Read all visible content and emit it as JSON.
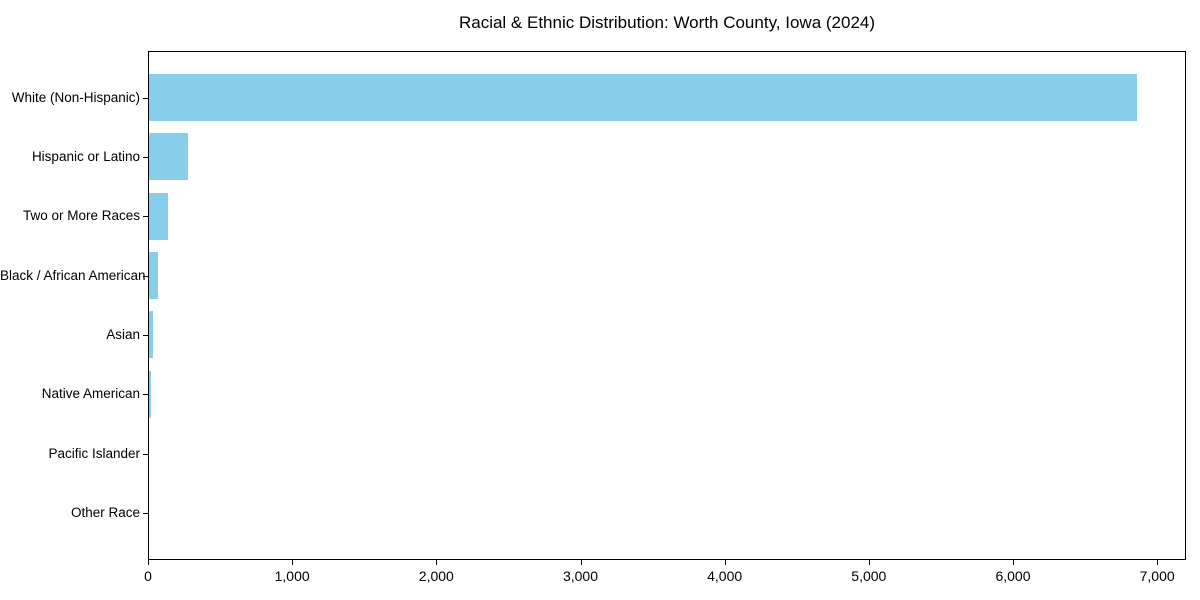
{
  "chart": {
    "background": "#ffffff",
    "bar_color": "#87ceeb",
    "axis_color": "#000000",
    "text_color": "#000000"
  },
  "chart_data": {
    "type": "bar",
    "orientation": "horizontal",
    "title": "Racial & Ethnic Distribution: Worth County, Iowa (2024)",
    "xlabel": "",
    "ylabel": "",
    "categories": [
      "White (Non-Hispanic)",
      "Hispanic or Latino",
      "Two or More Races",
      "Black / African American",
      "Asian",
      "Native American",
      "Pacific Islander",
      "Other Race"
    ],
    "values": [
      6855,
      270,
      130,
      65,
      30,
      12,
      3,
      2
    ],
    "xlim": [
      0,
      7200
    ],
    "x_ticks": [
      0,
      1000,
      2000,
      3000,
      4000,
      5000,
      6000,
      7000
    ],
    "x_tick_labels": [
      "0",
      "1,000",
      "2,000",
      "3,000",
      "4,000",
      "5,000",
      "6,000",
      "7,000"
    ],
    "grid": false,
    "legend": false,
    "bar_color": "#87ceeb"
  }
}
